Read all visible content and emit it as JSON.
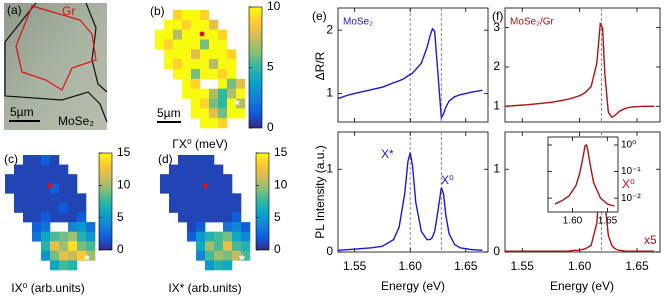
{
  "panel_a": {
    "label": "(a)",
    "gr_label": "Gr",
    "scale_bar": "5µm",
    "material": "MoSe₂"
  },
  "maps": [
    {
      "label": "(b)",
      "axis_label": "ΓX⁰ (meV)",
      "scale_bar": "5µm",
      "clim": [
        0,
        10
      ],
      "cticks": [
        0,
        5,
        10
      ],
      "values": [
        [
          null,
          null,
          9,
          10,
          10,
          9,
          null,
          null,
          null,
          null
        ],
        [
          null,
          10,
          10,
          9,
          10,
          10,
          8,
          null,
          null,
          null
        ],
        [
          10,
          10,
          7,
          10,
          10,
          10,
          10,
          9,
          null,
          null
        ],
        [
          10,
          9,
          10,
          10,
          10,
          6,
          10,
          10,
          null,
          null
        ],
        [
          null,
          10,
          10,
          10,
          8,
          10,
          10,
          10,
          9,
          null
        ],
        [
          null,
          10,
          9,
          10,
          10,
          10,
          7,
          10,
          10,
          null
        ],
        [
          null,
          null,
          10,
          10,
          6,
          10,
          10,
          9,
          10,
          null
        ],
        [
          null,
          null,
          null,
          10,
          9,
          null,
          null,
          10,
          6,
          8
        ],
        [
          null,
          null,
          null,
          10,
          10,
          10,
          7,
          5,
          7,
          10
        ],
        [
          null,
          null,
          null,
          null,
          10,
          9,
          6,
          5,
          10,
          7
        ],
        [
          null,
          null,
          null,
          null,
          10,
          10,
          8,
          6,
          10,
          10
        ],
        [
          null,
          null,
          null,
          null,
          null,
          10,
          10,
          9,
          null,
          null
        ]
      ]
    },
    {
      "label": "(c)",
      "axis_label": "IX⁰ (arb.units)",
      "clim": [
        0,
        15
      ],
      "cticks": [
        0,
        5,
        10,
        15
      ],
      "values": [
        [
          null,
          null,
          1,
          1,
          2,
          1,
          null,
          null,
          null,
          null
        ],
        [
          null,
          1,
          1,
          1,
          1,
          1,
          1,
          null,
          null,
          null
        ],
        [
          1,
          1,
          1,
          1,
          1,
          1,
          1,
          1,
          null,
          null
        ],
        [
          1,
          1,
          1,
          1,
          1,
          2,
          1,
          1,
          null,
          null
        ],
        [
          null,
          1,
          1,
          1,
          1,
          1,
          1,
          1,
          1,
          null
        ],
        [
          null,
          1,
          1,
          1,
          1,
          1,
          2,
          1,
          1,
          null
        ],
        [
          null,
          null,
          1,
          1,
          2,
          1,
          1,
          1,
          2,
          null
        ],
        [
          null,
          null,
          null,
          2,
          3,
          null,
          null,
          4,
          5,
          3
        ],
        [
          null,
          null,
          null,
          3,
          6,
          8,
          9,
          10,
          7,
          5
        ],
        [
          null,
          null,
          null,
          null,
          7,
          12,
          10,
          14,
          9,
          8
        ],
        [
          null,
          null,
          null,
          null,
          5,
          9,
          12,
          11,
          13,
          10
        ],
        [
          null,
          null,
          null,
          null,
          null,
          6,
          8,
          7,
          null,
          null
        ]
      ]
    },
    {
      "label": "(d)",
      "axis_label": "IX* (arb.units)",
      "clim": [
        0,
        15
      ],
      "cticks": [
        0,
        5,
        10,
        15
      ],
      "values": [
        [
          null,
          null,
          1,
          1,
          1,
          1,
          null,
          null,
          null,
          null
        ],
        [
          null,
          1,
          1,
          1,
          1,
          1,
          1,
          null,
          null,
          null
        ],
        [
          1,
          1,
          1,
          1,
          1,
          1,
          1,
          1,
          null,
          null
        ],
        [
          1,
          1,
          1,
          1,
          1,
          1,
          1,
          1,
          null,
          null
        ],
        [
          null,
          1,
          1,
          1,
          1,
          1,
          1,
          1,
          1,
          null
        ],
        [
          null,
          1,
          1,
          1,
          1,
          1,
          1,
          1,
          1,
          null
        ],
        [
          null,
          null,
          1,
          1,
          1,
          1,
          1,
          1,
          2,
          null
        ],
        [
          null,
          null,
          null,
          1,
          2,
          null,
          null,
          3,
          4,
          2
        ],
        [
          null,
          null,
          null,
          2,
          5,
          7,
          8,
          9,
          6,
          4
        ],
        [
          null,
          null,
          null,
          null,
          6,
          10,
          8,
          12,
          8,
          7
        ],
        [
          null,
          null,
          null,
          null,
          4,
          8,
          10,
          9,
          11,
          8
        ],
        [
          null,
          null,
          null,
          null,
          null,
          5,
          7,
          6,
          null,
          null
        ]
      ]
    }
  ],
  "chart_data": [
    {
      "type": "line",
      "panel": "(e)",
      "title": "MoSe₂",
      "ylabel": "ΔR/R",
      "x": [
        1.535,
        1.545,
        1.555,
        1.565,
        1.575,
        1.585,
        1.59,
        1.595,
        1.598,
        1.6,
        1.602,
        1.605,
        1.61,
        1.615,
        1.618,
        1.62,
        1.622,
        1.625,
        1.628,
        1.63,
        1.632,
        1.635,
        1.64,
        1.645,
        1.655,
        1.665
      ],
      "series": [
        {
          "color": "#1a1adb",
          "values": [
            0.92,
            0.98,
            1.02,
            1.06,
            1.1,
            1.17,
            1.2,
            1.24,
            1.28,
            1.3,
            1.32,
            1.38,
            1.48,
            1.72,
            1.92,
            2.02,
            1.98,
            1.3,
            0.62,
            0.68,
            0.78,
            0.88,
            0.95,
            0.98,
            1.02,
            1.05
          ]
        }
      ],
      "xlim": [
        1.535,
        1.67
      ],
      "xticks": [
        1.55,
        1.6,
        1.65
      ],
      "ylim": [
        0.55,
        2.35
      ],
      "yticks": [
        1,
        2
      ],
      "vlines": [
        1.6,
        1.628
      ]
    },
    {
      "type": "line",
      "ylabel": "PL Intensity (a.u.)",
      "xlabel": "Energy (eV)",
      "annotations": [
        "X*",
        "X⁰"
      ],
      "x": [
        1.535,
        1.545,
        1.555,
        1.565,
        1.575,
        1.585,
        1.59,
        1.595,
        1.598,
        1.6,
        1.602,
        1.605,
        1.61,
        1.615,
        1.618,
        1.62,
        1.622,
        1.625,
        1.628,
        1.63,
        1.632,
        1.635,
        1.64,
        1.645,
        1.655,
        1.665
      ],
      "series": [
        {
          "color": "#1a1adb",
          "values": [
            0.02,
            0.03,
            0.04,
            0.05,
            0.07,
            0.15,
            0.3,
            0.7,
            1.1,
            1.2,
            1.05,
            0.6,
            0.25,
            0.15,
            0.15,
            0.18,
            0.25,
            0.5,
            0.78,
            0.7,
            0.45,
            0.22,
            0.09,
            0.05,
            0.03,
            0.02
          ]
        }
      ],
      "xlim": [
        1.535,
        1.67
      ],
      "xticks": [
        {
          "value": 1.55,
          "label": "1.55"
        },
        {
          "value": 1.6,
          "label": "1.60"
        },
        {
          "value": 1.65,
          "label": "1.65"
        }
      ],
      "ylim": [
        0,
        1.45
      ],
      "yticks": [
        0,
        1
      ],
      "vlines": [
        1.6,
        1.628
      ]
    },
    {
      "type": "line",
      "panel": "(f)",
      "title": "MoSe₂/Gr",
      "x": [
        1.535,
        1.545,
        1.555,
        1.565,
        1.575,
        1.585,
        1.59,
        1.595,
        1.598,
        1.6,
        1.602,
        1.605,
        1.61,
        1.615,
        1.618,
        1.62,
        1.622,
        1.625,
        1.628,
        1.63,
        1.632,
        1.635,
        1.64,
        1.645,
        1.655,
        1.665
      ],
      "series": [
        {
          "color": "#b01010",
          "values": [
            1.0,
            1.02,
            1.04,
            1.07,
            1.1,
            1.15,
            1.18,
            1.22,
            1.25,
            1.27,
            1.3,
            1.35,
            1.5,
            2.1,
            3.1,
            3.0,
            1.8,
            0.85,
            0.72,
            0.75,
            0.8,
            0.88,
            0.95,
            0.98,
            1.0,
            1.0
          ]
        }
      ],
      "xlim": [
        1.535,
        1.67
      ],
      "xticks": [
        1.55,
        1.6,
        1.65
      ],
      "ylim": [
        0.6,
        3.5
      ],
      "yticks": [
        1,
        2,
        3
      ],
      "vlines": [
        1.619
      ]
    },
    {
      "type": "line",
      "xlabel": "Energy (eV)",
      "annotations": [
        "X⁰",
        "x5"
      ],
      "x": [
        1.535,
        1.545,
        1.555,
        1.565,
        1.575,
        1.585,
        1.59,
        1.595,
        1.598,
        1.6,
        1.602,
        1.605,
        1.61,
        1.615,
        1.618,
        1.62,
        1.622,
        1.625,
        1.628,
        1.63,
        1.632,
        1.635,
        1.64,
        1.645,
        1.655,
        1.665
      ],
      "series": [
        {
          "color": "#b01010",
          "values": [
            0.01,
            0.01,
            0.01,
            0.01,
            0.01,
            0.01,
            0.01,
            0.02,
            0.02,
            0.02,
            0.03,
            0.04,
            0.08,
            0.35,
            0.95,
            1.0,
            0.6,
            0.2,
            0.08,
            0.05,
            0.03,
            0.02,
            0.01,
            0.01,
            0.01,
            0.01
          ]
        }
      ],
      "xlim": [
        1.535,
        1.67
      ],
      "xticks": [
        {
          "value": 1.55,
          "label": "1.55"
        },
        {
          "value": 1.6,
          "label": "1.60"
        },
        {
          "value": 1.65,
          "label": "1.65"
        }
      ],
      "ylim": [
        0,
        1.45
      ],
      "yticks": [
        0,
        1
      ],
      "vlines": [
        1.619
      ]
    },
    {
      "type": "line",
      "log_y": true,
      "x": [
        1.575,
        1.585,
        1.595,
        1.605,
        1.61,
        1.615,
        1.618,
        1.62,
        1.622,
        1.625,
        1.63,
        1.64,
        1.65,
        1.66
      ],
      "series": [
        {
          "color": "#b01010",
          "values": [
            0.006,
            0.008,
            0.012,
            0.03,
            0.08,
            0.35,
            0.95,
            1.0,
            0.6,
            0.2,
            0.04,
            0.01,
            0.006,
            0.005
          ]
        }
      ],
      "xlim": [
        1.565,
        1.665
      ],
      "xticks": [
        {
          "value": 1.6,
          "label": "1.60"
        },
        {
          "value": 1.65,
          "label": "1.65"
        }
      ],
      "ylim": [
        0.003,
        2
      ],
      "yticks": [
        {
          "value": 1,
          "label": "10⁰"
        },
        {
          "value": 0.1,
          "label": "10⁻¹"
        },
        {
          "value": 0.01,
          "label": "10⁻²"
        }
      ]
    }
  ]
}
